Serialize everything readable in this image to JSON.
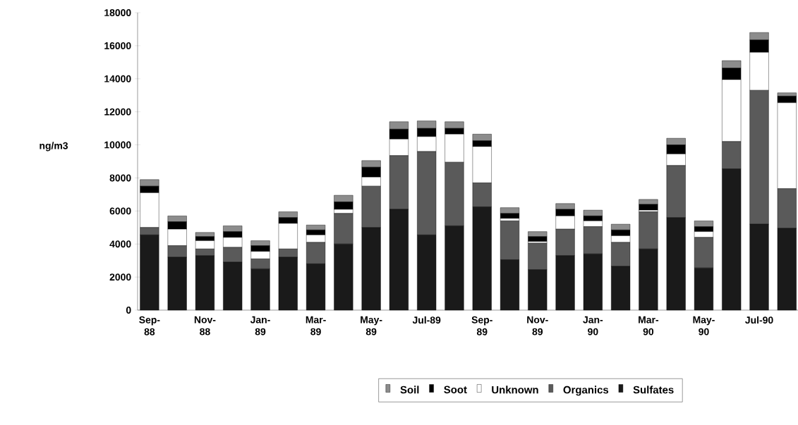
{
  "chart_data": {
    "type": "bar",
    "stacked": true,
    "ylabel": "ng/m3",
    "categories": [
      "Sep-88",
      null,
      "Nov-88",
      null,
      "Jan-89",
      null,
      "Mar-89",
      null,
      "May-89",
      null,
      "Jul-89",
      null,
      "Sep-89",
      null,
      "Nov-89",
      null,
      "Jan-90",
      null,
      "Mar-90",
      null,
      "May-90",
      null,
      "Jul-90",
      null
    ],
    "series": [
      {
        "name": "Sulfates",
        "color": "#1a1a1a",
        "values": [
          4550,
          3200,
          3300,
          2900,
          2500,
          3200,
          2800,
          4000,
          5000,
          6100,
          4550,
          5100,
          6250,
          3050,
          2450,
          3300,
          3400,
          2650,
          3700,
          5600,
          2550,
          8550,
          5200,
          4950
        ]
      },
      {
        "name": "Organics",
        "color": "#5a5a5a",
        "values": [
          450,
          700,
          400,
          900,
          600,
          500,
          1300,
          1850,
          2500,
          3250,
          5050,
          3850,
          1450,
          2350,
          1600,
          1600,
          1650,
          1450,
          2250,
          3150,
          1850,
          1650,
          8100,
          2400
        ]
      },
      {
        "name": "Unknown",
        "color": "#ffffff",
        "values": [
          2100,
          1000,
          500,
          600,
          450,
          1550,
          450,
          250,
          550,
          1000,
          900,
          1700,
          2200,
          150,
          100,
          800,
          350,
          400,
          100,
          700,
          350,
          3750,
          2300,
          5200
        ]
      },
      {
        "name": "Soot",
        "color": "#000000",
        "values": [
          400,
          450,
          250,
          350,
          350,
          350,
          300,
          450,
          600,
          600,
          500,
          350,
          350,
          300,
          300,
          400,
          300,
          350,
          350,
          550,
          300,
          700,
          750,
          400
        ]
      },
      {
        "name": "Soil",
        "color": "#8c8c8c",
        "values": [
          400,
          350,
          250,
          350,
          300,
          350,
          300,
          400,
          400,
          450,
          450,
          400,
          400,
          350,
          300,
          350,
          350,
          350,
          300,
          400,
          350,
          450,
          450,
          200
        ]
      }
    ],
    "ylim": [
      0,
      18000
    ],
    "yticks": [
      0,
      2000,
      4000,
      6000,
      8000,
      10000,
      12000,
      14000,
      16000,
      18000
    ],
    "legend": "bottom"
  }
}
